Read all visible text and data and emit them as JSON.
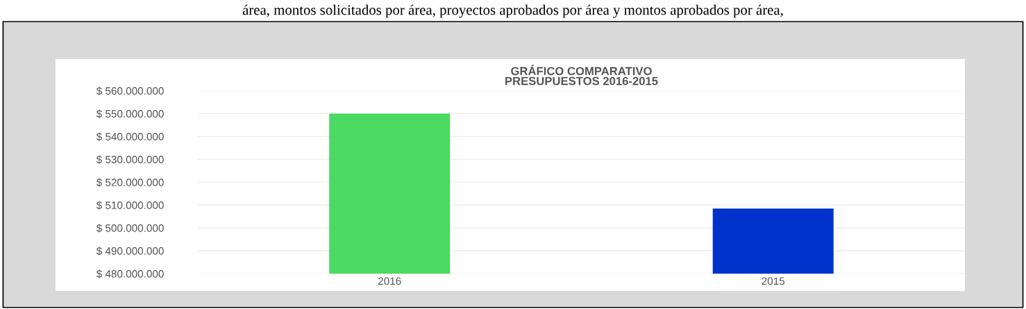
{
  "chart_data": {
    "type": "bar",
    "title": "GRÁFICO COMPARATIVO\nPRESUPUESTOS 2016-2015",
    "annotations": [
      "área, montos solicitados por área, proyectos aprobados por área y montos aprobados por área,"
    ],
    "categories": [
      "2016",
      "2015"
    ],
    "values": [
      550000000,
      508500000
    ],
    "colors": [
      "#4cd964",
      "#0033cc"
    ],
    "ylim": [
      480000000,
      560000000
    ],
    "yticks": [
      {
        "value": 480000000,
        "label": "$ 480.000.000"
      },
      {
        "value": 490000000,
        "label": "$ 490.000.000"
      },
      {
        "value": 500000000,
        "label": "$ 500.000.000"
      },
      {
        "value": 510000000,
        "label": "$ 510.000.000"
      },
      {
        "value": 520000000,
        "label": "$ 520.000.000"
      },
      {
        "value": 530000000,
        "label": "$ 530.000.000"
      },
      {
        "value": 540000000,
        "label": "$ 540.000.000"
      },
      {
        "value": 550000000,
        "label": "$ 550.000.000"
      },
      {
        "value": 560000000,
        "label": "$ 560.000.000"
      }
    ],
    "grid": "y"
  }
}
